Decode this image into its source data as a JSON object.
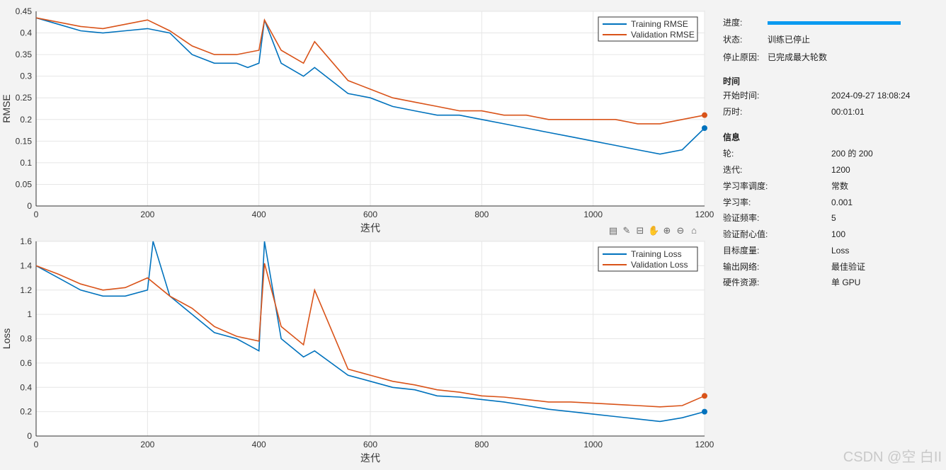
{
  "info": {
    "progress": {
      "label": "进度:",
      "fraction": 1.0
    },
    "status": {
      "label": "状态:",
      "value": "训练已停止"
    },
    "stop_reason": {
      "label": "停止原因:",
      "value": "已完成最大轮数"
    },
    "time_header": "时间",
    "start_time": {
      "label": "开始时间:",
      "value": "2024-09-27 18:08:24"
    },
    "elapsed": {
      "label": "历时:",
      "value": "00:01:01"
    },
    "info_header": "信息",
    "epoch": {
      "label": "轮:",
      "value": "200 的 200"
    },
    "iteration": {
      "label": "迭代:",
      "value": "1200"
    },
    "lr_schedule": {
      "label": "学习率调度:",
      "value": "常数"
    },
    "lr": {
      "label": "学习率:",
      "value": "0.001"
    },
    "val_freq": {
      "label": "验证频率:",
      "value": "5"
    },
    "val_patience": {
      "label": "验证耐心值:",
      "value": "100"
    },
    "objective_metric": {
      "label": "目标度量:",
      "value": "Loss"
    },
    "output_net": {
      "label": "输出网络:",
      "value": "最佳验证"
    },
    "hardware": {
      "label": "硬件资源:",
      "value": "单 GPU"
    }
  },
  "toolbar": [
    "export-icon",
    "brush-icon",
    "datatip-icon",
    "pan-icon",
    "zoom-in-icon",
    "zoom-out-icon",
    "home-icon"
  ],
  "watermark": "CSDN @空 白II",
  "colors": {
    "training": "#0072bd",
    "validation": "#d95319",
    "progress": "#0a9af0"
  },
  "chart_data": [
    {
      "type": "line",
      "xlabel": "迭代",
      "ylabel": "RMSE",
      "xlim": [
        0,
        1200
      ],
      "ylim": [
        0,
        0.45
      ],
      "xticks": [
        "0",
        "200",
        "400",
        "600",
        "800",
        "1000",
        "1200"
      ],
      "yticks": [
        "0",
        "0.05",
        "0.1",
        "0.15",
        "0.2",
        "0.25",
        "0.3",
        "0.35",
        "0.4",
        "0.45"
      ],
      "grid": true,
      "legend": "top-right",
      "series": [
        {
          "name": "Training RMSE",
          "x": [
            0,
            40,
            80,
            120,
            160,
            200,
            240,
            280,
            320,
            360,
            380,
            400,
            410,
            440,
            480,
            500,
            560,
            600,
            640,
            680,
            720,
            760,
            800,
            840,
            880,
            920,
            960,
            1000,
            1040,
            1080,
            1120,
            1160,
            1200
          ],
          "y": [
            0.435,
            0.42,
            0.405,
            0.4,
            0.405,
            0.41,
            0.4,
            0.35,
            0.33,
            0.33,
            0.32,
            0.33,
            0.43,
            0.33,
            0.3,
            0.32,
            0.26,
            0.25,
            0.23,
            0.22,
            0.21,
            0.21,
            0.2,
            0.19,
            0.18,
            0.17,
            0.16,
            0.15,
            0.14,
            0.13,
            0.12,
            0.13,
            0.18
          ]
        },
        {
          "name": "Validation RMSE",
          "x": [
            0,
            40,
            80,
            120,
            160,
            200,
            240,
            280,
            320,
            360,
            400,
            410,
            440,
            480,
            500,
            560,
            600,
            640,
            680,
            720,
            760,
            800,
            840,
            880,
            920,
            960,
            1000,
            1040,
            1080,
            1120,
            1160,
            1200
          ],
          "y": [
            0.435,
            0.425,
            0.415,
            0.41,
            0.42,
            0.43,
            0.405,
            0.37,
            0.35,
            0.35,
            0.36,
            0.43,
            0.36,
            0.33,
            0.38,
            0.29,
            0.27,
            0.25,
            0.24,
            0.23,
            0.22,
            0.22,
            0.21,
            0.21,
            0.2,
            0.2,
            0.2,
            0.2,
            0.19,
            0.19,
            0.2,
            0.21
          ]
        }
      ]
    },
    {
      "type": "line",
      "xlabel": "迭代",
      "ylabel": "Loss",
      "xlim": [
        0,
        1200
      ],
      "ylim": [
        0,
        1.6
      ],
      "xticks": [
        "0",
        "200",
        "400",
        "600",
        "800",
        "1000",
        "1200"
      ],
      "yticks": [
        "0",
        "0.2",
        "0.4",
        "0.6",
        "0.8",
        "1",
        "1.2",
        "1.4",
        "1.6"
      ],
      "grid": true,
      "legend": "top-right",
      "series": [
        {
          "name": "Training Loss",
          "x": [
            0,
            40,
            80,
            120,
            160,
            200,
            210,
            240,
            280,
            320,
            360,
            380,
            400,
            410,
            440,
            480,
            500,
            560,
            600,
            640,
            680,
            720,
            760,
            800,
            840,
            880,
            920,
            960,
            1000,
            1040,
            1080,
            1120,
            1160,
            1200
          ],
          "y": [
            1.4,
            1.3,
            1.2,
            1.15,
            1.15,
            1.2,
            1.6,
            1.15,
            1.0,
            0.85,
            0.8,
            0.75,
            0.7,
            1.6,
            0.8,
            0.65,
            0.7,
            0.5,
            0.45,
            0.4,
            0.38,
            0.33,
            0.32,
            0.3,
            0.28,
            0.25,
            0.22,
            0.2,
            0.18,
            0.16,
            0.14,
            0.12,
            0.15,
            0.2
          ]
        },
        {
          "name": "Validation Loss",
          "x": [
            0,
            40,
            80,
            120,
            160,
            200,
            240,
            280,
            320,
            360,
            400,
            410,
            440,
            480,
            500,
            560,
            600,
            640,
            680,
            720,
            760,
            800,
            840,
            880,
            920,
            960,
            1000,
            1040,
            1080,
            1120,
            1160,
            1200
          ],
          "y": [
            1.4,
            1.33,
            1.25,
            1.2,
            1.22,
            1.3,
            1.15,
            1.05,
            0.9,
            0.82,
            0.78,
            1.42,
            0.9,
            0.75,
            1.2,
            0.55,
            0.5,
            0.45,
            0.42,
            0.38,
            0.36,
            0.33,
            0.32,
            0.3,
            0.28,
            0.28,
            0.27,
            0.26,
            0.25,
            0.24,
            0.25,
            0.33
          ]
        }
      ]
    }
  ]
}
